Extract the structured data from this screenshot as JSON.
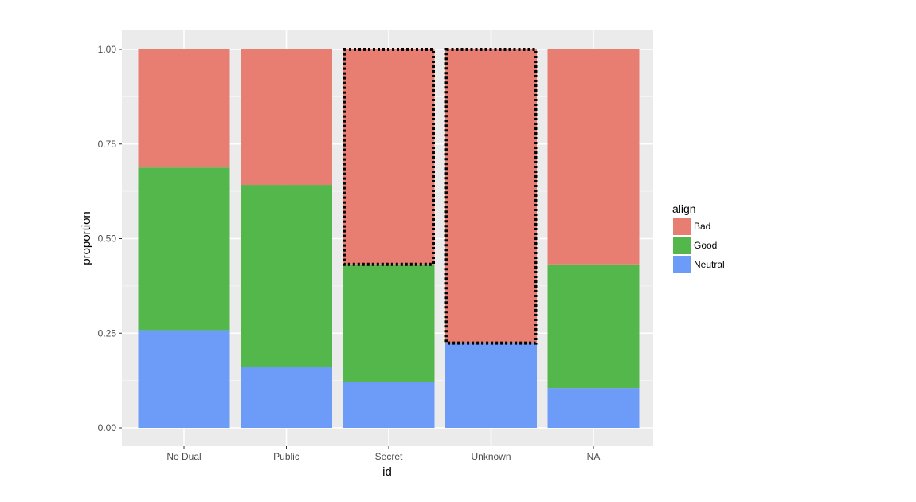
{
  "chart_data": {
    "type": "bar",
    "stacked": true,
    "title": "",
    "xlabel": "id",
    "ylabel": "proportion",
    "ylim": [
      0,
      1
    ],
    "y_ticks": [
      "0.00",
      "0.25",
      "0.50",
      "0.75",
      "1.00"
    ],
    "categories": [
      "No Dual",
      "Public",
      "Secret",
      "Unknown",
      "NA"
    ],
    "series": [
      {
        "name": "Bad",
        "color": "#e87e72",
        "values": [
          0.312,
          0.358,
          0.568,
          0.776,
          0.568
        ]
      },
      {
        "name": "Good",
        "color": "#53b74c",
        "values": [
          0.43,
          0.482,
          0.312,
          0.0,
          0.327
        ]
      },
      {
        "name": "Neutral",
        "color": "#6d9cf8",
        "values": [
          0.258,
          0.16,
          0.12,
          0.224,
          0.105
        ]
      }
    ],
    "legend": {
      "title": "align",
      "position": "right"
    },
    "grid": true,
    "panel_background": "#ebebeb",
    "highlighted": [
      {
        "category": "Secret",
        "series": "Bad",
        "style": "dotted black border"
      },
      {
        "category": "Unknown",
        "series": "Bad",
        "style": "dotted black border"
      }
    ]
  }
}
